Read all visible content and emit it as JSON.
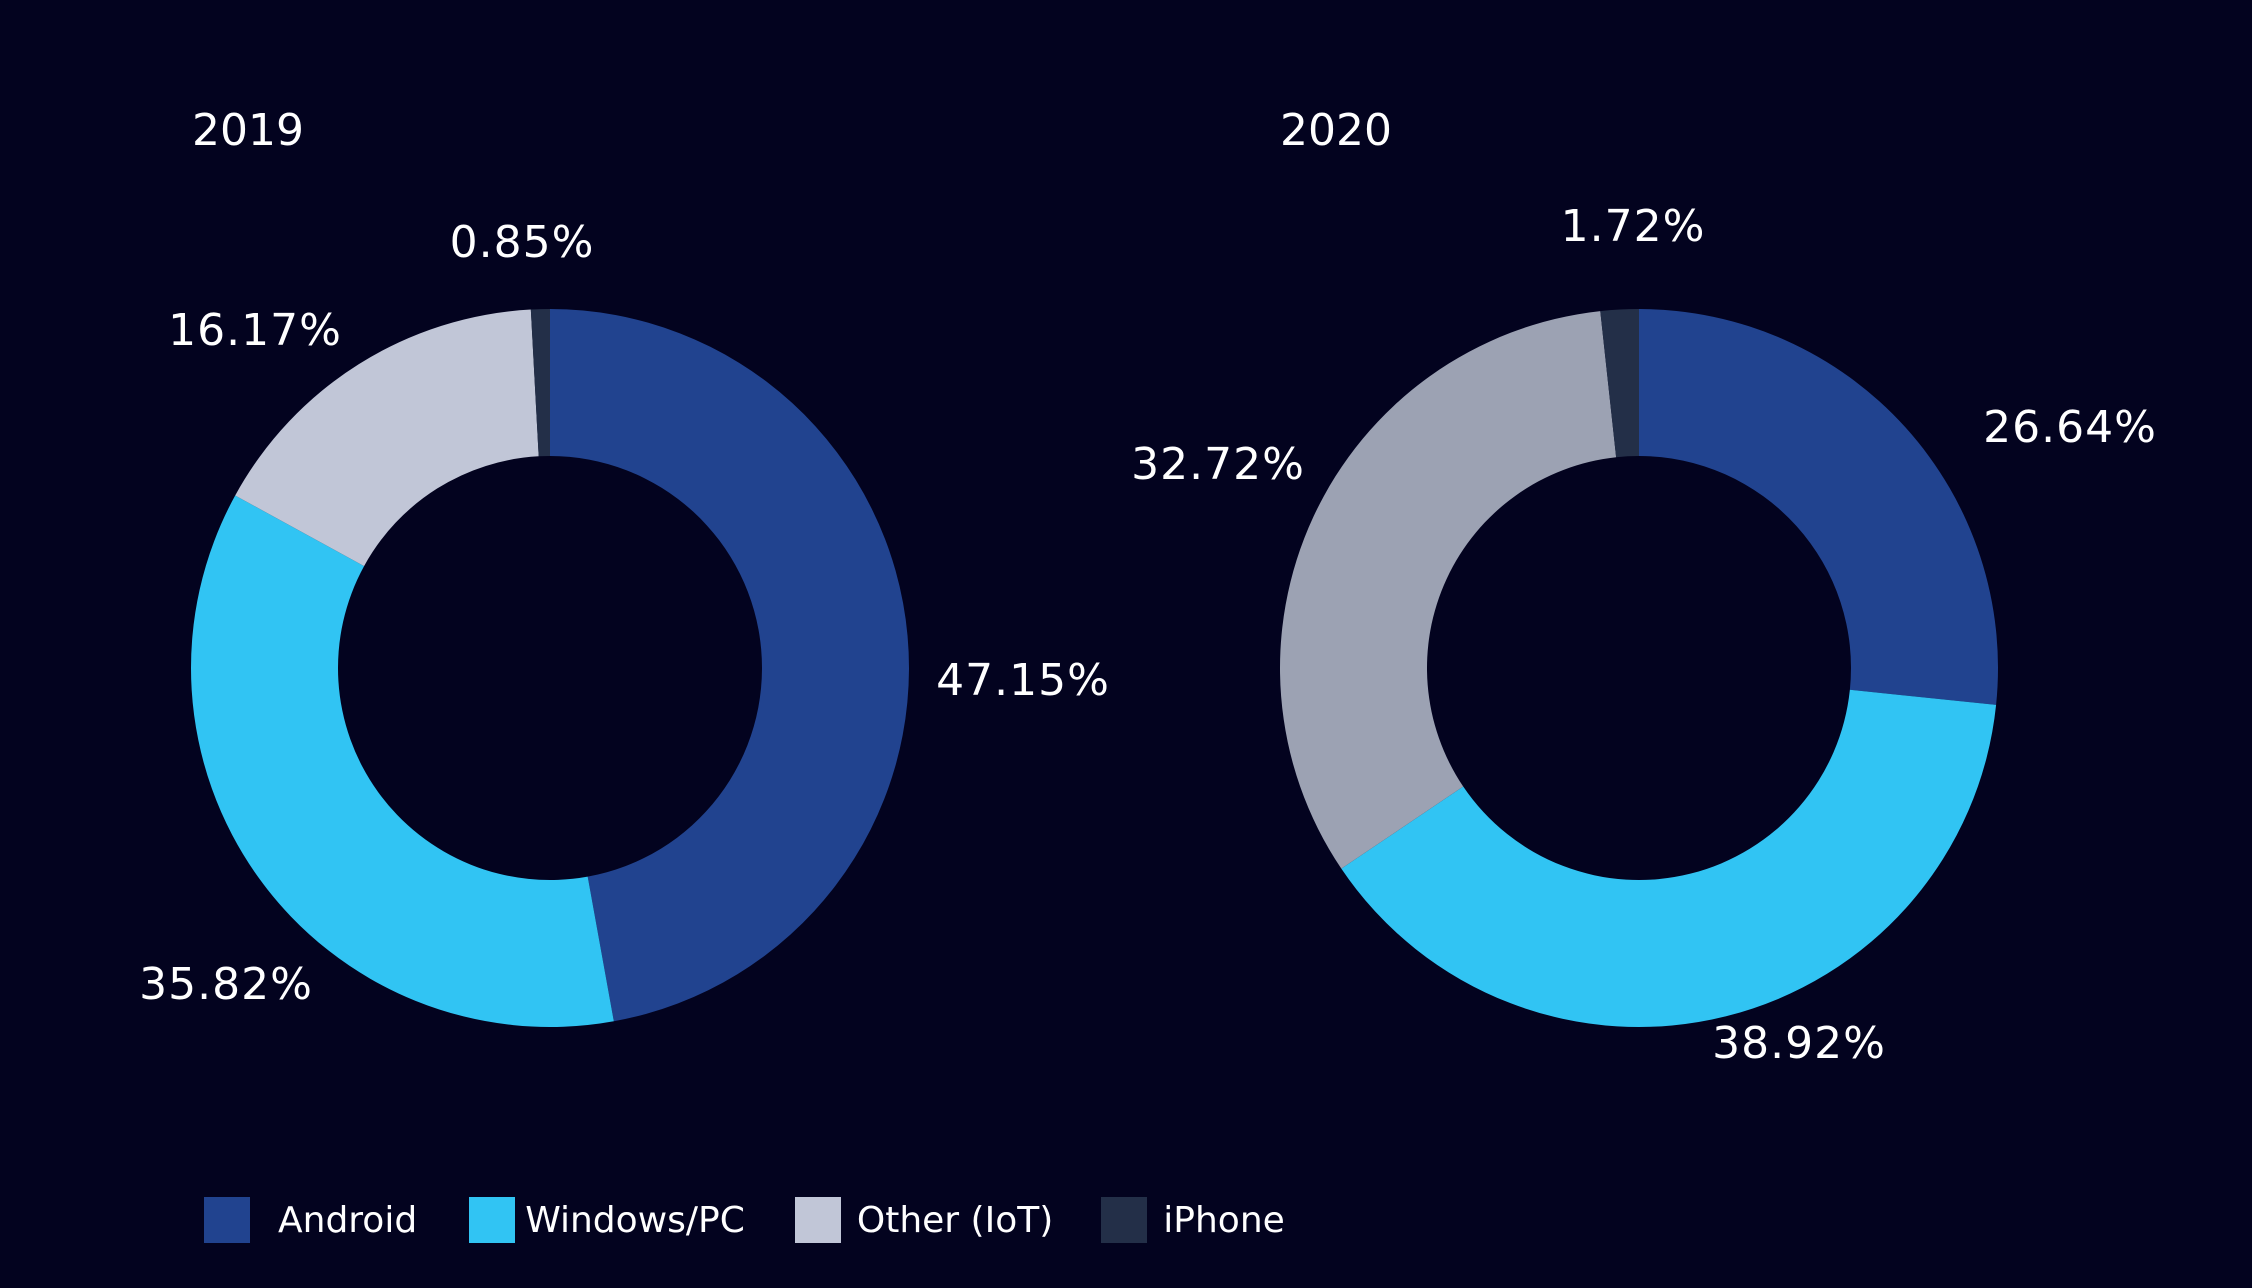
{
  "colors": {
    "background": "#03031f",
    "Android": "#21438f",
    "Windows/PC": "#31c4f3",
    "iPhone": "#232f48"
  },
  "legend": [
    {
      "label": "Android",
      "color": "#21438f"
    },
    {
      "label": "Windows/PC",
      "color": "#31c4f3"
    },
    {
      "label": "Other (IoT)",
      "color": "#c1c6d7"
    },
    {
      "label": "iPhone",
      "color": "#232f48"
    }
  ],
  "chart_data": [
    {
      "type": "pie",
      "subtype": "donut",
      "title": "2019",
      "categories": [
        "Android",
        "Windows/PC",
        "Other (IoT)",
        "iPhone"
      ],
      "values": [
        47.15,
        35.82,
        16.17,
        0.85
      ],
      "labels": [
        "47.15%",
        "35.82%",
        "16.17%",
        "0.85%"
      ],
      "colors": [
        "#21438f",
        "#31c4f3",
        "#c1c6d7",
        "#232f48"
      ]
    },
    {
      "type": "pie",
      "subtype": "donut",
      "title": "2020",
      "categories": [
        "Android",
        "Windows/PC",
        "Other (IoT)",
        "iPhone"
      ],
      "values": [
        26.64,
        38.92,
        32.72,
        1.72
      ],
      "labels": [
        "26.64%",
        "38.92%",
        "32.72%",
        "1.72%"
      ],
      "colors": [
        "#21438f",
        "#31c4f3",
        "#9ca2b3",
        "#232f48"
      ]
    }
  ]
}
